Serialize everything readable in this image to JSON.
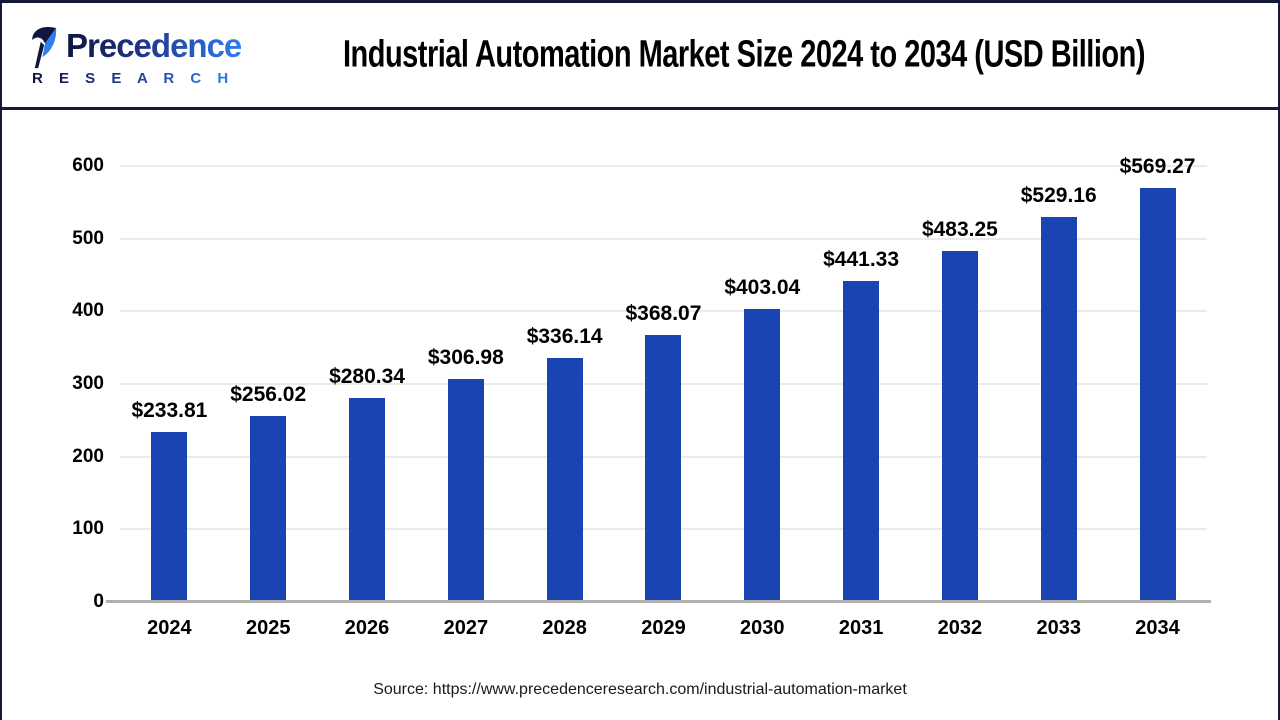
{
  "header": {
    "logo": {
      "wordmark": "Precedence",
      "research_label": "R E S E A R C H"
    },
    "title": "Industrial Automation Market Size 2024 to 2034 (USD Billion)"
  },
  "chart_data": {
    "type": "bar",
    "title": "Industrial Automation Market Size 2024 to 2034 (USD Billion)",
    "categories": [
      "2024",
      "2025",
      "2026",
      "2027",
      "2028",
      "2029",
      "2030",
      "2031",
      "2032",
      "2033",
      "2034"
    ],
    "values": [
      233.81,
      256.02,
      280.34,
      306.98,
      336.14,
      368.07,
      403.04,
      441.33,
      483.25,
      529.16,
      569.27
    ],
    "value_labels": [
      "$233.81",
      "$256.02",
      "$280.34",
      "$306.98",
      "$336.14",
      "$368.07",
      "$403.04",
      "$441.33",
      "$483.25",
      "$529.16",
      "$569.27"
    ],
    "xlabel": "",
    "ylabel": "",
    "ylim": [
      0,
      600
    ],
    "yticks": [
      0,
      100,
      200,
      300,
      400,
      500,
      600
    ],
    "grid": true,
    "legend_position": "none",
    "bar_color": "#1a44b2",
    "gridline_color": "#eaeaea",
    "axis_color": "#b0b0b0"
  },
  "footer": {
    "source": "Source: https://www.precedenceresearch.com/industrial-automation-market"
  },
  "colors": {
    "divider_navy": "#171a45",
    "logo_dark": "#0f163f",
    "logo_blue": "#2f7df2",
    "text": "#000000"
  }
}
